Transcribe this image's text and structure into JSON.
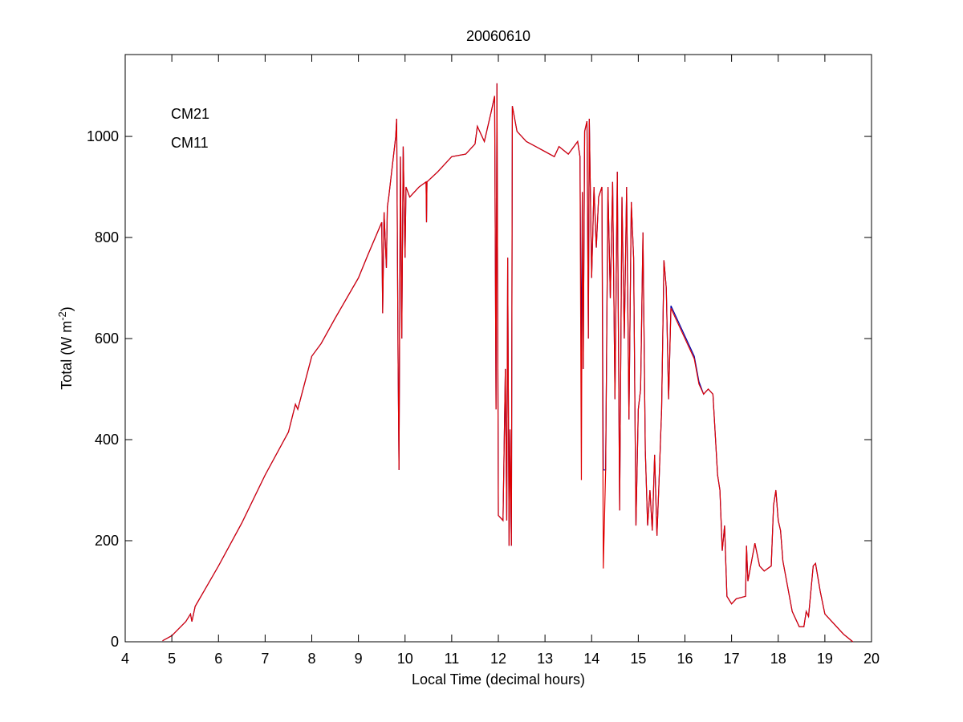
{
  "chart_data": {
    "type": "line",
    "title": "20060610",
    "x_label": "Local Time (decimal hours)",
    "y_label": {
      "text": "Total (W m",
      "superscript": "-2",
      "suffix": ")"
    },
    "xlim": [
      4,
      20
    ],
    "xticks": [
      4,
      5,
      6,
      7,
      8,
      9,
      10,
      11,
      12,
      13,
      14,
      15,
      16,
      17,
      18,
      19,
      20
    ],
    "ylim": [
      0,
      1162
    ],
    "yticks": [
      0,
      200,
      400,
      600,
      800,
      1000
    ],
    "grid": false,
    "legend": "upper left",
    "x": [
      4.8,
      5.0,
      5.3,
      5.4,
      5.43,
      5.5,
      6,
      6.5,
      7,
      7.5,
      7.65,
      7.7,
      8,
      8.2,
      8.5,
      9,
      9.2,
      9.5,
      9.52,
      9.55,
      9.6,
      9.62,
      9.65,
      9.7,
      9.75,
      9.8,
      9.82,
      9.85,
      9.87,
      9.9,
      9.93,
      9.96,
      10,
      10.02,
      10.1,
      10.3,
      10.45,
      10.46,
      10.47,
      10.7,
      11,
      11.3,
      11.5,
      11.55,
      11.7,
      11.85,
      11.92,
      11.95,
      11.97,
      12,
      12.1,
      12.15,
      12.18,
      12.2,
      12.23,
      12.25,
      12.28,
      12.3,
      12.4,
      12.6,
      12.8,
      13,
      13.2,
      13.3,
      13.5,
      13.7,
      13.75,
      13.78,
      13.8,
      13.82,
      13.85,
      13.9,
      13.93,
      13.95,
      14,
      14.05,
      14.1,
      14.15,
      14.22,
      14.25,
      14.3,
      14.35,
      14.4,
      14.45,
      14.5,
      14.55,
      14.6,
      14.65,
      14.7,
      14.75,
      14.8,
      14.85,
      14.9,
      14.95,
      15,
      15.05,
      15.1,
      15.15,
      15.2,
      15.25,
      15.3,
      15.35,
      15.4,
      15.45,
      15.5,
      15.55,
      15.6,
      15.65,
      15.7,
      15.8,
      16,
      16.2,
      16.3,
      16.4,
      16.5,
      16.6,
      16.7,
      16.75,
      16.8,
      16.85,
      16.9,
      17,
      17.1,
      17.3,
      17.32,
      17.35,
      17.5,
      17.6,
      17.7,
      17.85,
      17.9,
      17.95,
      18,
      18.05,
      18.1,
      18.3,
      18.45,
      18.55,
      18.6,
      18.65,
      18.75,
      18.8,
      18.9,
      19,
      19.2,
      19.4,
      19.6
    ],
    "series": [
      {
        "name": "CM21",
        "color": "#0000a8",
        "values": [
          2,
          12,
          40,
          55,
          40,
          70,
          150,
          235,
          330,
          415,
          470,
          460,
          565,
          590,
          640,
          720,
          765,
          830,
          650,
          850,
          740,
          860,
          880,
          920,
          960,
          1000,
          1035,
          560,
          340,
          960,
          600,
          980,
          760,
          900,
          880,
          900,
          910,
          830,
          910,
          930,
          960,
          965,
          985,
          1020,
          990,
          1050,
          1080,
          460,
          1105,
          250,
          240,
          540,
          240,
          760,
          190,
          420,
          190,
          1060,
          1010,
          990,
          980,
          970,
          960,
          980,
          965,
          990,
          960,
          540,
          890,
          540,
          1010,
          1030,
          600,
          1035,
          720,
          900,
          780,
          880,
          900,
          340,
          340,
          900,
          680,
          910,
          480,
          930,
          260,
          880,
          600,
          900,
          440,
          870,
          760,
          230,
          460,
          500,
          810,
          380,
          230,
          300,
          220,
          370,
          210,
          330,
          460,
          755,
          700,
          480,
          665,
          645,
          605,
          565,
          515,
          490,
          500,
          490,
          330,
          300,
          180,
          230,
          90,
          75,
          85,
          90,
          190,
          120,
          195,
          150,
          140,
          150,
          270,
          300,
          240,
          220,
          160,
          60,
          30,
          30,
          60,
          50,
          150,
          155,
          100,
          55,
          35,
          15,
          0
        ]
      },
      {
        "name": "CM11",
        "color": "#e00000",
        "values": [
          2,
          12,
          40,
          55,
          40,
          70,
          150,
          235,
          330,
          415,
          470,
          460,
          565,
          590,
          640,
          720,
          765,
          830,
          650,
          850,
          740,
          860,
          880,
          920,
          960,
          1000,
          1035,
          560,
          340,
          960,
          600,
          980,
          760,
          900,
          880,
          900,
          910,
          830,
          910,
          930,
          960,
          965,
          985,
          1020,
          990,
          1050,
          1080,
          460,
          1105,
          250,
          240,
          540,
          240,
          760,
          190,
          420,
          190,
          1060,
          1010,
          990,
          980,
          970,
          960,
          980,
          965,
          990,
          960,
          320,
          890,
          540,
          1010,
          1030,
          600,
          1035,
          720,
          900,
          780,
          880,
          900,
          145,
          340,
          900,
          680,
          910,
          480,
          930,
          260,
          880,
          600,
          900,
          440,
          870,
          760,
          230,
          460,
          500,
          810,
          380,
          230,
          300,
          220,
          370,
          210,
          330,
          460,
          755,
          700,
          480,
          660,
          640,
          600,
          560,
          510,
          490,
          500,
          490,
          330,
          300,
          180,
          230,
          90,
          75,
          85,
          90,
          190,
          120,
          195,
          150,
          140,
          150,
          270,
          300,
          240,
          220,
          160,
          60,
          30,
          30,
          60,
          50,
          150,
          155,
          100,
          55,
          35,
          15,
          0
        ]
      }
    ]
  }
}
